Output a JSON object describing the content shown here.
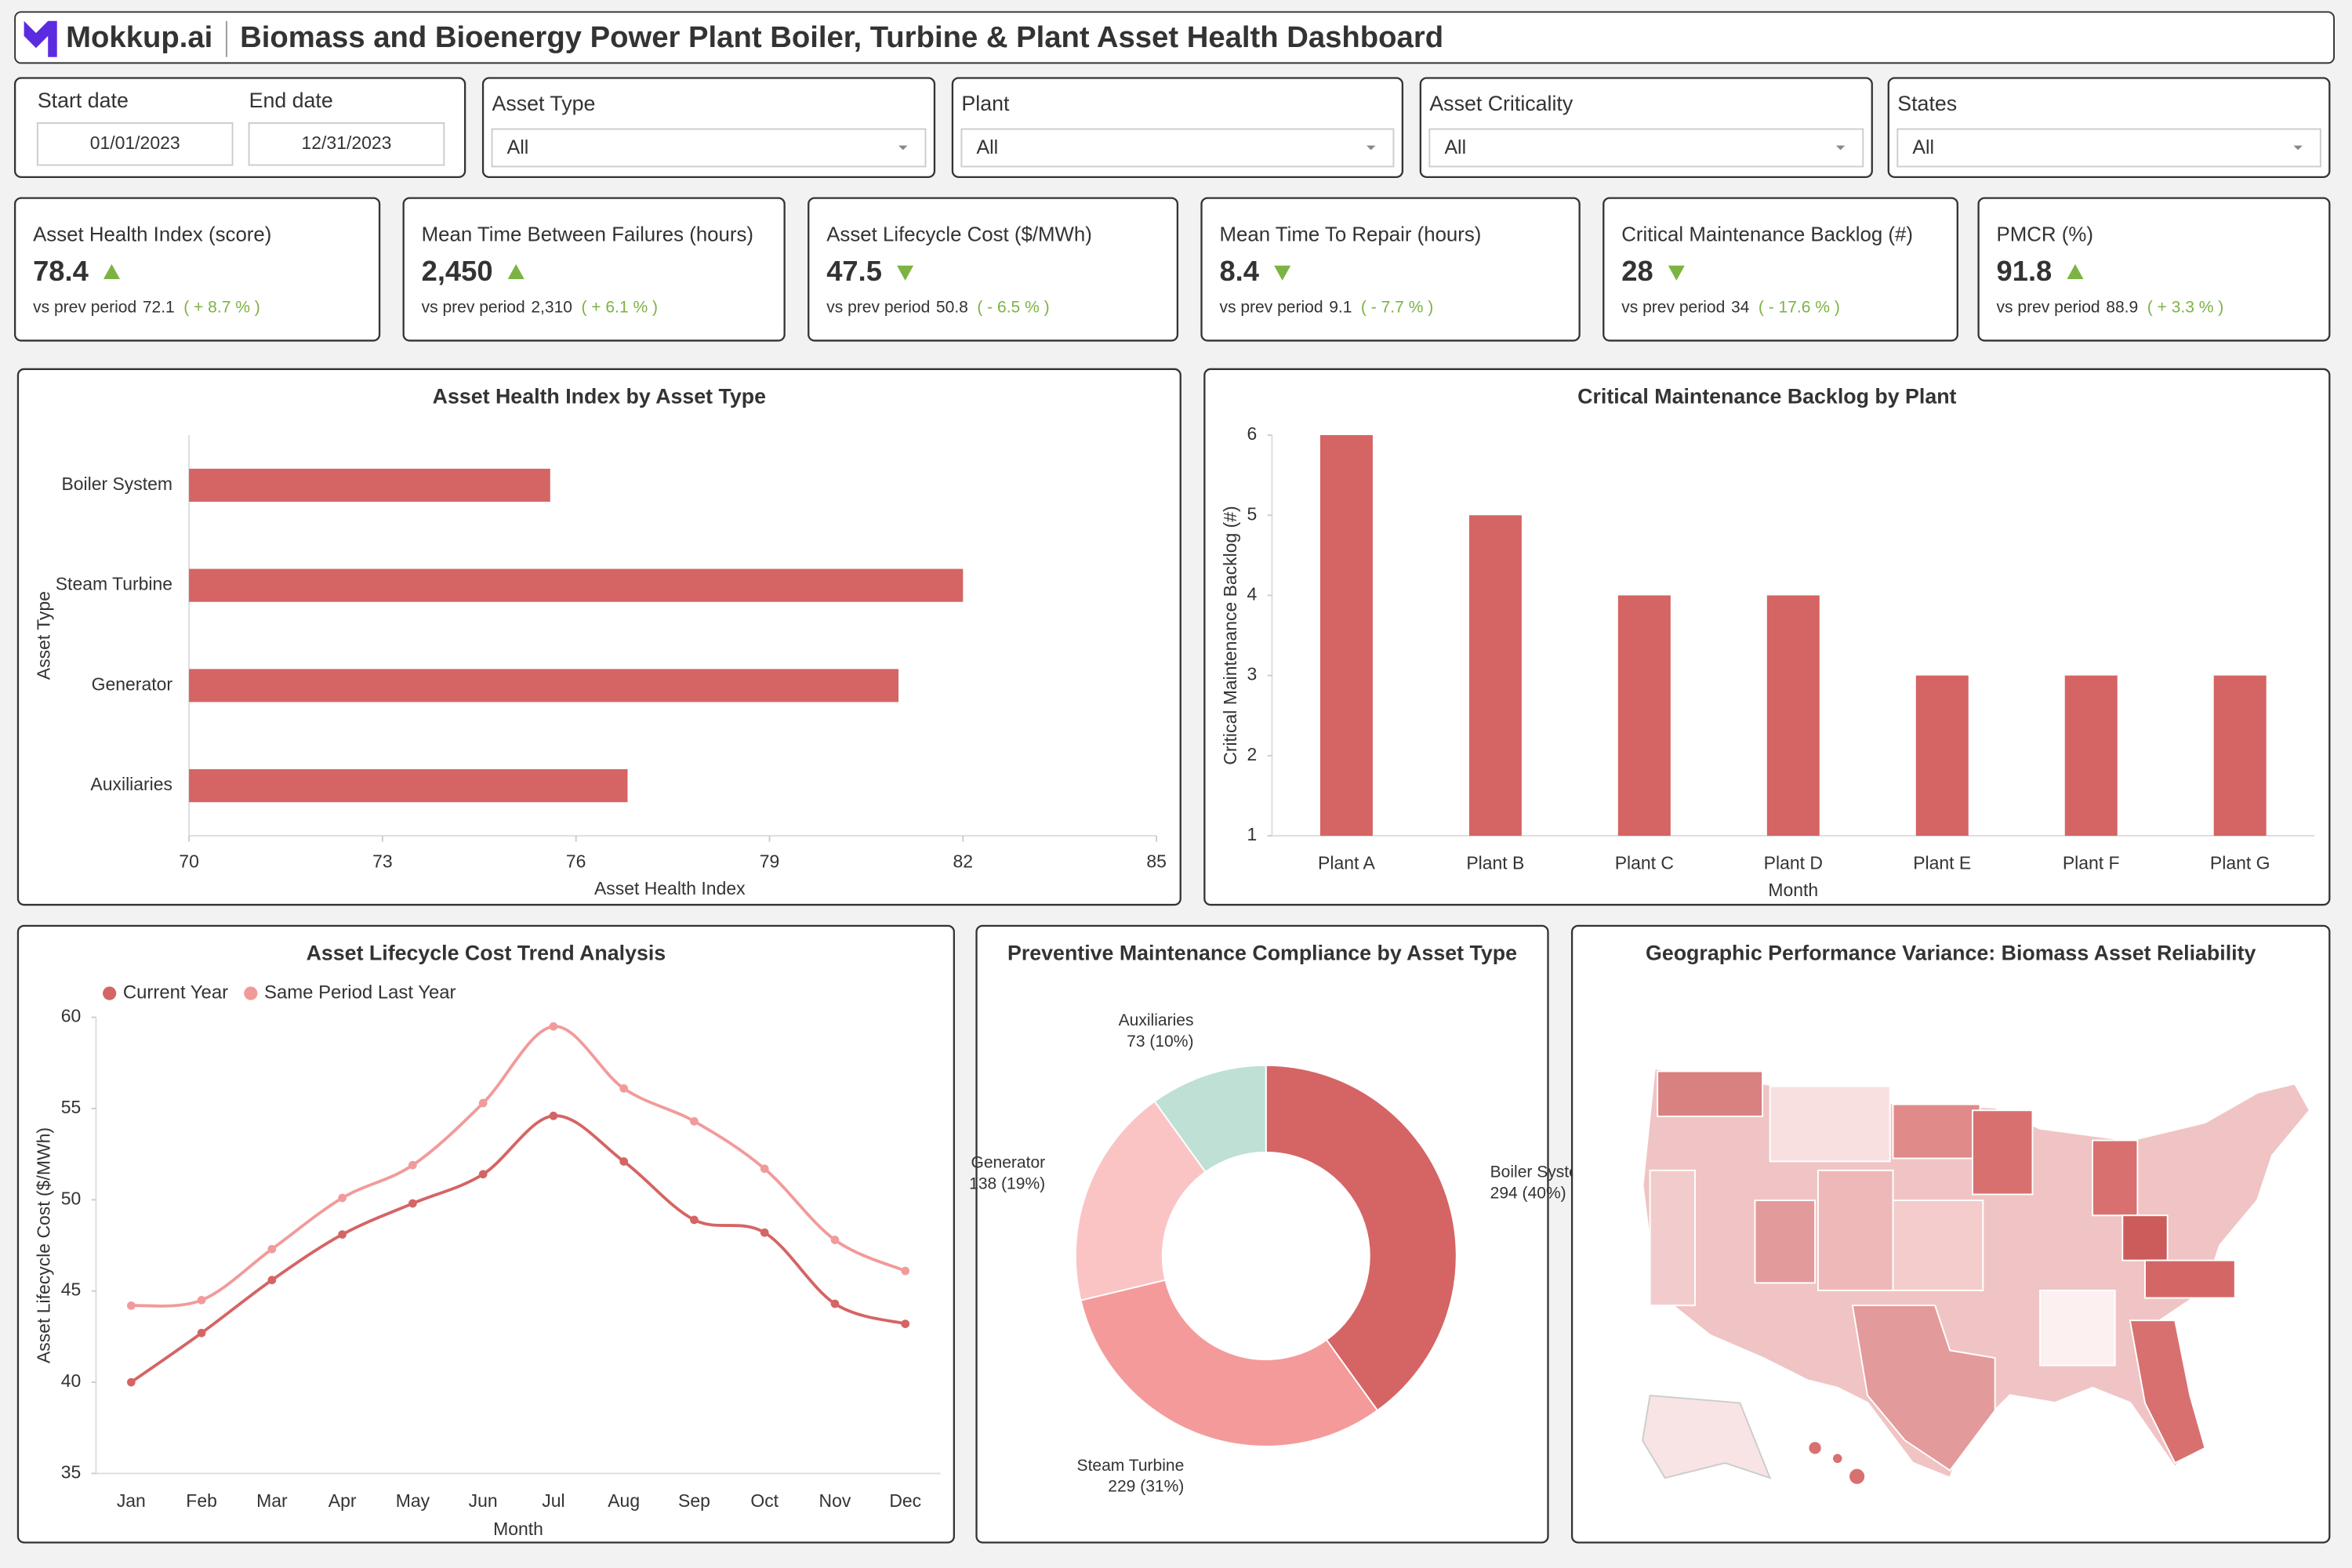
{
  "header": {
    "brand": "Mokkup.ai",
    "title": "Biomass and Bioenergy Power Plant Boiler, Turbine & Plant Asset Health Dashboard"
  },
  "filters": {
    "date_range": [
      {
        "label": "Start date",
        "value": "01/01/2023"
      },
      {
        "label": "End date",
        "value": "12/31/2023"
      }
    ],
    "dropdowns": [
      {
        "label": "Asset Type",
        "value": "All"
      },
      {
        "label": "Plant",
        "value": "All"
      },
      {
        "label": "Asset Criticality",
        "value": "All"
      },
      {
        "label": "States",
        "value": "All"
      }
    ]
  },
  "kpis": [
    {
      "title": "Asset Health Index (score)",
      "value": "78.4",
      "trend": "up",
      "comparison_label": "vs prev period",
      "previous": "72.1",
      "change": "( + 8.7 % )"
    },
    {
      "title": "Mean Time Between Failures (hours)",
      "value": "2,450",
      "trend": "up",
      "comparison_label": "vs prev period",
      "previous": "2,310",
      "change": "( + 6.1 % )"
    },
    {
      "title": "Asset Lifecycle Cost ($/MWh)",
      "value": "47.5",
      "trend": "down",
      "comparison_label": "vs prev period",
      "previous": "50.8",
      "change": "( - 6.5 % )"
    },
    {
      "title": "Mean Time To Repair (hours)",
      "value": "8.4",
      "trend": "down",
      "comparison_label": "vs prev period",
      "previous": "9.1",
      "change": "( - 7.7 % )"
    },
    {
      "title": "Critical Maintenance Backlog (#)",
      "value": "28",
      "trend": "down",
      "comparison_label": "vs prev period",
      "previous": "34",
      "change": "( - 17.6 % )"
    },
    {
      "title": "PMCR (%)",
      "value": "91.8",
      "trend": "up",
      "comparison_label": "vs prev period",
      "previous": "88.9",
      "change": "( + 3.3 % )"
    }
  ],
  "chart_data": [
    {
      "type": "bar",
      "orientation": "horizontal",
      "title": "Asset Health Index by Asset Type",
      "categories": [
        "Boiler System",
        "Steam Turbine",
        "Generator",
        "Auxiliaries"
      ],
      "values": [
        75.6,
        82.0,
        81.0,
        76.8
      ],
      "color": "#d56464",
      "xlim": [
        70,
        85
      ],
      "xticks": [
        70,
        73,
        76,
        79,
        82,
        85
      ],
      "x_label": "Asset Health Index",
      "y_label": "Asset Type"
    },
    {
      "type": "bar",
      "orientation": "vertical",
      "title": "Critical Maintenance Backlog by Plant",
      "categories": [
        "Plant A",
        "Plant B",
        "Plant C",
        "Plant D",
        "Plant E",
        "Plant F",
        "Plant G"
      ],
      "values": [
        6,
        5,
        4,
        4,
        3,
        3,
        3
      ],
      "color": "#d56464",
      "ylim": [
        1,
        6
      ],
      "yticks": [
        1,
        2,
        3,
        4,
        5,
        6
      ],
      "x_label": "Month",
      "y_label": "Critical Maintenance Backlog (#)"
    },
    {
      "type": "line",
      "title": "Asset Lifecycle Cost Trend Analysis",
      "categories": [
        "Jan",
        "Feb",
        "Mar",
        "Apr",
        "May",
        "Jun",
        "Jul",
        "Aug",
        "Sep",
        "Oct",
        "Nov",
        "Dec"
      ],
      "series": [
        {
          "name": "Current Year",
          "color": "#d56464",
          "values": [
            40.0,
            42.7,
            45.6,
            48.1,
            49.8,
            51.4,
            54.6,
            52.1,
            48.9,
            48.2,
            44.3,
            43.2
          ]
        },
        {
          "name": "Same Period Last Year",
          "color": "#f29a9a",
          "values": [
            44.2,
            44.5,
            47.3,
            50.1,
            51.9,
            55.3,
            59.5,
            56.1,
            54.3,
            51.7,
            47.8,
            46.1
          ]
        }
      ],
      "ylim": [
        35,
        60
      ],
      "yticks": [
        35,
        40,
        45,
        50,
        55,
        60
      ],
      "x_label": "Month",
      "y_label": "Asset Lifecycle Cost ($/MWh)"
    },
    {
      "type": "pie",
      "title": "Preventive Maintenance Compliance by Asset Type",
      "categories": [
        "Boiler System",
        "Steam Turbine",
        "Generator",
        "Auxiliaries"
      ],
      "values": [
        294,
        229,
        138,
        73
      ],
      "value_labels": [
        "294 (40%)",
        "229 (31%)",
        "138 (19%)",
        "73 (10%)"
      ],
      "colors": [
        "#d56464",
        "#f49a9a",
        "#fbc4c4",
        "#bfe0d4"
      ]
    },
    {
      "type": "map",
      "title": "Geographic Performance Variance: Biomass Asset Reliability"
    }
  ]
}
